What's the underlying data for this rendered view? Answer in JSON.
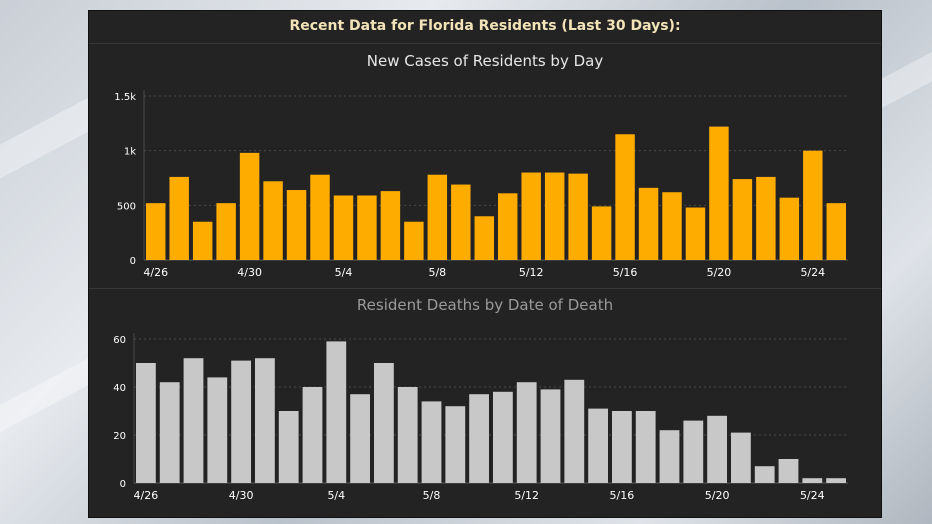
{
  "header": {
    "title": "Recent Data for Florida Residents (Last 30 Days):"
  },
  "colors": {
    "panel_bg": "#232323",
    "cases_bar": "#ffac00",
    "deaths_bar": "#c8c8c8",
    "grid": "#4a4a4a",
    "tick_text": "#ffffff"
  },
  "chart_data": [
    {
      "type": "bar",
      "title": "New Cases of Residents by Day",
      "xlabel": "",
      "ylabel": "",
      "ylim": [
        0,
        1500
      ],
      "y_ticks": [
        0,
        500,
        1000,
        1500
      ],
      "y_tick_labels": [
        "0",
        "500",
        "1k",
        "1.5k"
      ],
      "categories": [
        "4/26",
        "4/27",
        "4/28",
        "4/29",
        "4/30",
        "5/1",
        "5/2",
        "5/3",
        "5/4",
        "5/5",
        "5/6",
        "5/7",
        "5/8",
        "5/9",
        "5/10",
        "5/11",
        "5/12",
        "5/13",
        "5/14",
        "5/15",
        "5/16",
        "5/17",
        "5/18",
        "5/19",
        "5/20",
        "5/21",
        "5/22",
        "5/23",
        "5/24",
        "5/25"
      ],
      "x_tick_labels": [
        "4/26",
        "4/30",
        "5/4",
        "5/8",
        "5/12",
        "5/16",
        "5/20",
        "5/24"
      ],
      "values": [
        520,
        760,
        350,
        520,
        980,
        720,
        640,
        780,
        590,
        590,
        630,
        350,
        780,
        690,
        400,
        610,
        800,
        800,
        790,
        490,
        1150,
        660,
        620,
        480,
        1220,
        740,
        760,
        570,
        1000,
        520
      ],
      "grid": true
    },
    {
      "type": "bar",
      "title": "Resident Deaths by Date of Death",
      "xlabel": "",
      "ylabel": "",
      "ylim": [
        0,
        60
      ],
      "y_ticks": [
        0,
        20,
        40,
        60
      ],
      "y_tick_labels": [
        "0",
        "20",
        "40",
        "60"
      ],
      "categories": [
        "4/26",
        "4/27",
        "4/28",
        "4/29",
        "4/30",
        "5/1",
        "5/2",
        "5/3",
        "5/4",
        "5/5",
        "5/6",
        "5/7",
        "5/8",
        "5/9",
        "5/10",
        "5/11",
        "5/12",
        "5/13",
        "5/14",
        "5/15",
        "5/16",
        "5/17",
        "5/18",
        "5/19",
        "5/20",
        "5/21",
        "5/22",
        "5/23",
        "5/24",
        "5/25"
      ],
      "x_tick_labels": [
        "4/26",
        "4/30",
        "5/4",
        "5/8",
        "5/12",
        "5/16",
        "5/20",
        "5/24"
      ],
      "values": [
        50,
        42,
        52,
        44,
        51,
        52,
        30,
        40,
        59,
        37,
        50,
        40,
        34,
        32,
        37,
        38,
        42,
        39,
        43,
        31,
        30,
        30,
        22,
        26,
        28,
        21,
        7,
        10,
        2,
        2
      ],
      "grid": true
    }
  ]
}
